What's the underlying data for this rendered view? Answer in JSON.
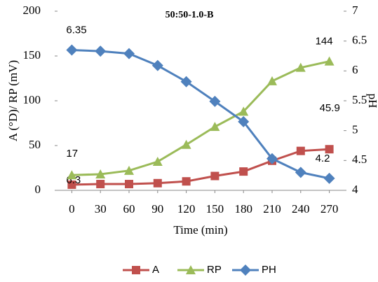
{
  "chart_data": {
    "type": "line",
    "title": "50:50-1.0-B",
    "x_label": "Time (min)",
    "y_label": "A (°D)/ RP (mV)",
    "y2_label": "pH",
    "x": [
      0,
      30,
      60,
      90,
      120,
      150,
      180,
      210,
      240,
      270
    ],
    "xlim": [
      -15,
      285
    ],
    "xticks": [
      0,
      30,
      60,
      90,
      120,
      150,
      180,
      210,
      240,
      270
    ],
    "ylim": [
      0,
      200
    ],
    "yticks": [
      0,
      50,
      100,
      150,
      200
    ],
    "y2lim": [
      4,
      7
    ],
    "y2ticks": [
      4,
      4.5,
      5,
      5.5,
      6,
      6.5,
      7
    ],
    "grid": false,
    "legend": "bottom",
    "series": [
      {
        "name": "A",
        "color": "#c0504d",
        "marker": "square",
        "values": [
          6.3,
          7,
          7,
          8,
          10,
          16,
          21,
          33,
          44,
          45.9
        ],
        "value_labels": [
          "6.3",
          null,
          null,
          null,
          null,
          null,
          null,
          null,
          null,
          "45.9"
        ]
      },
      {
        "name": "RP",
        "color": "#9bbb59",
        "marker": "triangle",
        "values": [
          17,
          18,
          22,
          32,
          51,
          71,
          88,
          122,
          137,
          144
        ],
        "value_labels": [
          "17",
          null,
          null,
          null,
          null,
          null,
          null,
          null,
          null,
          "144"
        ]
      },
      {
        "name": "PH",
        "color": "#4f81bd",
        "marker": "diamond",
        "axis": "y2",
        "values": [
          6.35,
          6.33,
          6.29,
          6.09,
          5.82,
          5.49,
          5.15,
          4.53,
          4.3,
          4.2
        ],
        "value_labels": [
          "6.35",
          null,
          null,
          null,
          null,
          null,
          null,
          null,
          null,
          "4.2"
        ]
      }
    ]
  }
}
